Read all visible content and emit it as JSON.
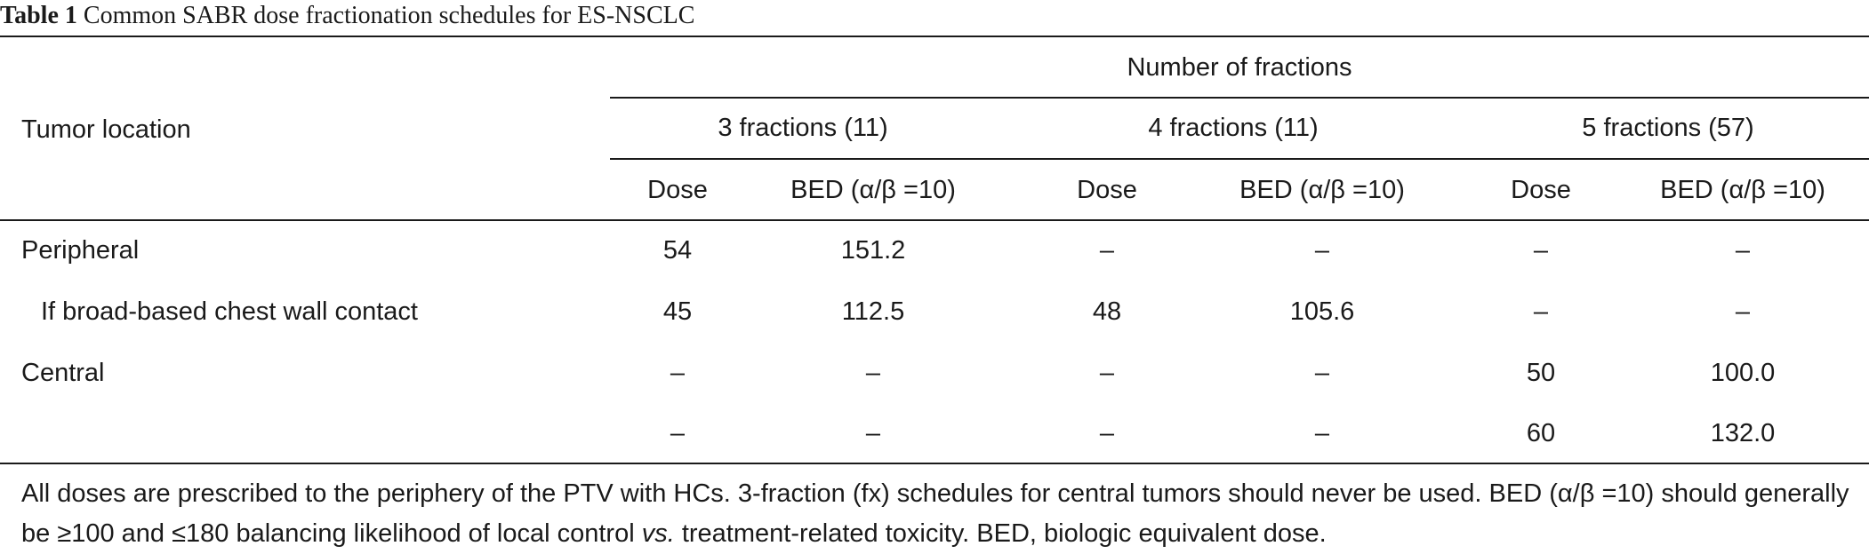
{
  "caption": {
    "label": "Table 1",
    "title": "Common SABR dose fractionation schedules for ES-NSCLC"
  },
  "header": {
    "row_label": "Tumor location",
    "group_title": "Number of fractions",
    "groups": [
      "3 fractions (11)",
      "4 fractions (11)",
      "5 fractions (57)"
    ],
    "subcols": [
      "Dose",
      "BED (α/β =10)",
      "Dose",
      "BED (α/β =10)",
      "Dose",
      "BED (α/β =10)"
    ]
  },
  "rows": [
    {
      "label": "Peripheral",
      "cells": [
        "54",
        "151.2",
        "–",
        "–",
        "–",
        "–"
      ]
    },
    {
      "label": "If broad-based chest wall contact",
      "cells": [
        "45",
        "112.5",
        "48",
        "105.6",
        "–",
        "–"
      ]
    },
    {
      "label": "Central",
      "cells": [
        "–",
        "–",
        "–",
        "–",
        "50",
        "100.0"
      ]
    },
    {
      "label": "",
      "cells": [
        "–",
        "–",
        "–",
        "–",
        "60",
        "132.0"
      ]
    }
  ],
  "footnote": {
    "part1": "All doses are prescribed to the periphery of the PTV with HCs. 3-fraction (fx) schedules for central tumors should never be used. BED (α/β =10) should generally be ≥100 and ≤180 balancing likelihood of local control ",
    "vs": "vs.",
    "part2": " treatment-related toxicity. BED, biologic equivalent dose."
  }
}
